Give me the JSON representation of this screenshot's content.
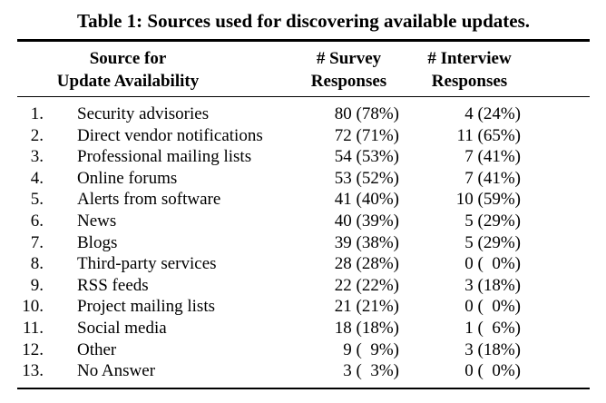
{
  "colors": {
    "text": "#000000",
    "background": "#ffffff",
    "rule": "#000000"
  },
  "table": {
    "title": "Table 1: Sources used for discovering available updates.",
    "columns": {
      "source_line1": "Source for",
      "source_line2": "Update Availability",
      "survey_line1": "# Survey",
      "survey_line2": "Responses",
      "interview_line1": "# Interview",
      "interview_line2": "Responses"
    },
    "rows": [
      {
        "num": "1.",
        "source": "Security advisories",
        "survey": "80 (78%)",
        "interview": "4 (24%)"
      },
      {
        "num": "2.",
        "source": "Direct vendor notifications",
        "survey": "72 (71%)",
        "interview": "11 (65%)"
      },
      {
        "num": "3.",
        "source": "Professional mailing lists",
        "survey": "54 (53%)",
        "interview": "7 (41%)"
      },
      {
        "num": "4.",
        "source": "Online forums",
        "survey": "53 (52%)",
        "interview": "7 (41%)"
      },
      {
        "num": "5.",
        "source": "Alerts from software",
        "survey": "41 (40%)",
        "interview": "10 (59%)"
      },
      {
        "num": "6.",
        "source": "News",
        "survey": "40 (39%)",
        "interview": "5 (29%)"
      },
      {
        "num": "7.",
        "source": "Blogs",
        "survey": "39 (38%)",
        "interview": "5 (29%)"
      },
      {
        "num": "8.",
        "source": "Third-party services",
        "survey": "28 (28%)",
        "interview": "0 ( 0%)"
      },
      {
        "num": "9.",
        "source": "RSS feeds",
        "survey": "22 (22%)",
        "interview": "3 (18%)"
      },
      {
        "num": "10.",
        "source": "Project mailing lists",
        "survey": "21 (21%)",
        "interview": "0 ( 0%)"
      },
      {
        "num": "11.",
        "source": "Social media",
        "survey": "18 (18%)",
        "interview": "1 ( 6%)"
      },
      {
        "num": "12.",
        "source": "Other",
        "survey": "9 ( 9%)",
        "interview": "3 (18%)"
      },
      {
        "num": "13.",
        "source": "No Answer",
        "survey": "3 ( 3%)",
        "interview": "0 ( 0%)"
      }
    ]
  }
}
